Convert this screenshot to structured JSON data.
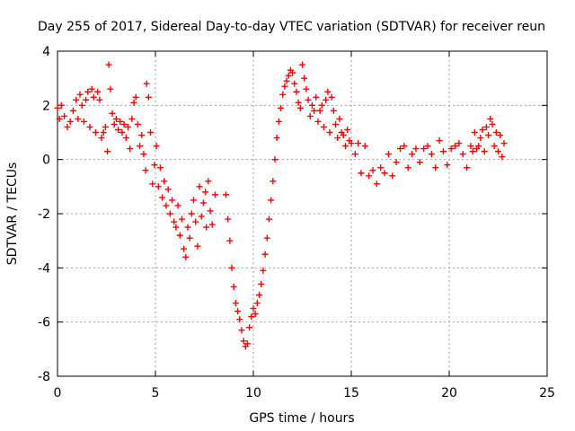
{
  "chart_data": {
    "type": "scatter",
    "title": "Day 255 of 2017, Sidereal Day-to-day VTEC variation (SDTVAR) for receiver reun",
    "xlabel": "GPS time / hours",
    "ylabel": "SDTVAR / TECUs",
    "xlim": [
      0,
      25
    ],
    "ylim": [
      -8,
      4
    ],
    "xticks": [
      0,
      5,
      10,
      15,
      20,
      25
    ],
    "yticks": [
      -8,
      -6,
      -4,
      -2,
      0,
      2,
      4
    ],
    "grid": true,
    "marker": "+",
    "series": [
      {
        "name": "SDTVAR",
        "color": "#ff0000",
        "points": [
          [
            0.0,
            1.9
          ],
          [
            0.1,
            1.5
          ],
          [
            0.2,
            2.0
          ],
          [
            0.35,
            1.6
          ],
          [
            0.5,
            1.2
          ],
          [
            0.65,
            1.4
          ],
          [
            0.8,
            1.8
          ],
          [
            0.95,
            2.2
          ],
          [
            1.05,
            1.5
          ],
          [
            1.15,
            2.4
          ],
          [
            1.25,
            2.0
          ],
          [
            1.35,
            1.4
          ],
          [
            1.45,
            2.2
          ],
          [
            1.55,
            2.5
          ],
          [
            1.65,
            1.2
          ],
          [
            1.75,
            2.6
          ],
          [
            1.85,
            2.3
          ],
          [
            1.95,
            1.0
          ],
          [
            2.05,
            2.5
          ],
          [
            2.15,
            2.2
          ],
          [
            2.25,
            0.8
          ],
          [
            2.35,
            1.0
          ],
          [
            2.45,
            1.2
          ],
          [
            2.55,
            0.3
          ],
          [
            2.62,
            3.5
          ],
          [
            2.7,
            2.6
          ],
          [
            2.8,
            1.7
          ],
          [
            2.9,
            1.3
          ],
          [
            3.0,
            1.5
          ],
          [
            3.1,
            1.1
          ],
          [
            3.2,
            1.4
          ],
          [
            3.3,
            1.0
          ],
          [
            3.4,
            1.3
          ],
          [
            3.5,
            0.8
          ],
          [
            3.6,
            1.2
          ],
          [
            3.7,
            0.4
          ],
          [
            3.8,
            1.5
          ],
          [
            3.9,
            2.1
          ],
          [
            4.0,
            2.3
          ],
          [
            4.1,
            1.3
          ],
          [
            4.2,
            0.5
          ],
          [
            4.3,
            0.9
          ],
          [
            4.4,
            0.2
          ],
          [
            4.5,
            -0.4
          ],
          [
            4.55,
            2.8
          ],
          [
            4.65,
            2.3
          ],
          [
            4.75,
            1.0
          ],
          [
            4.85,
            -0.9
          ],
          [
            4.95,
            -0.2
          ],
          [
            5.05,
            0.5
          ],
          [
            5.15,
            -1.0
          ],
          [
            5.25,
            -0.3
          ],
          [
            5.35,
            -1.4
          ],
          [
            5.45,
            -0.8
          ],
          [
            5.55,
            -1.7
          ],
          [
            5.65,
            -1.1
          ],
          [
            5.75,
            -2.0
          ],
          [
            5.85,
            -1.5
          ],
          [
            5.95,
            -2.3
          ],
          [
            6.05,
            -2.5
          ],
          [
            6.15,
            -1.7
          ],
          [
            6.25,
            -2.8
          ],
          [
            6.35,
            -2.2
          ],
          [
            6.45,
            -3.3
          ],
          [
            6.55,
            -3.6
          ],
          [
            6.65,
            -2.5
          ],
          [
            6.75,
            -2.9
          ],
          [
            6.85,
            -2.0
          ],
          [
            6.95,
            -1.5
          ],
          [
            7.05,
            -2.3
          ],
          [
            7.15,
            -3.2
          ],
          [
            7.25,
            -1.0
          ],
          [
            7.35,
            -2.1
          ],
          [
            7.45,
            -1.6
          ],
          [
            7.55,
            -1.2
          ],
          [
            7.6,
            -2.5
          ],
          [
            7.7,
            -0.8
          ],
          [
            7.8,
            -1.9
          ],
          [
            7.9,
            -2.4
          ],
          [
            8.05,
            -1.3
          ],
          [
            8.6,
            -1.3
          ],
          [
            8.7,
            -2.2
          ],
          [
            8.8,
            -3.0
          ],
          [
            8.9,
            -4.0
          ],
          [
            9.0,
            -4.7
          ],
          [
            9.1,
            -5.3
          ],
          [
            9.2,
            -5.6
          ],
          [
            9.3,
            -5.9
          ],
          [
            9.4,
            -6.3
          ],
          [
            9.5,
            -6.7
          ],
          [
            9.6,
            -6.9
          ],
          [
            9.7,
            -6.8
          ],
          [
            9.8,
            -6.2
          ],
          [
            9.9,
            -5.8
          ],
          [
            10.0,
            -5.5
          ],
          [
            10.1,
            -5.7
          ],
          [
            10.2,
            -5.3
          ],
          [
            10.3,
            -5.0
          ],
          [
            10.4,
            -4.6
          ],
          [
            10.5,
            -4.1
          ],
          [
            10.6,
            -3.5
          ],
          [
            10.7,
            -2.9
          ],
          [
            10.8,
            -2.2
          ],
          [
            10.9,
            -1.5
          ],
          [
            11.0,
            -0.8
          ],
          [
            11.1,
            0.0
          ],
          [
            11.2,
            0.8
          ],
          [
            11.3,
            1.4
          ],
          [
            11.4,
            1.9
          ],
          [
            11.5,
            2.4
          ],
          [
            11.6,
            2.7
          ],
          [
            11.7,
            2.9
          ],
          [
            11.8,
            3.1
          ],
          [
            11.9,
            3.3
          ],
          [
            12.0,
            3.2
          ],
          [
            12.1,
            2.8
          ],
          [
            12.2,
            2.5
          ],
          [
            12.3,
            2.1
          ],
          [
            12.4,
            1.9
          ],
          [
            12.5,
            3.5
          ],
          [
            12.6,
            3.0
          ],
          [
            12.7,
            2.6
          ],
          [
            12.8,
            2.2
          ],
          [
            12.9,
            1.6
          ],
          [
            13.0,
            2.0
          ],
          [
            13.1,
            1.8
          ],
          [
            13.2,
            2.3
          ],
          [
            13.3,
            1.4
          ],
          [
            13.4,
            1.8
          ],
          [
            13.5,
            2.0
          ],
          [
            13.6,
            1.2
          ],
          [
            13.7,
            2.2
          ],
          [
            13.8,
            2.5
          ],
          [
            13.9,
            1.0
          ],
          [
            14.0,
            2.3
          ],
          [
            14.1,
            1.8
          ],
          [
            14.2,
            1.3
          ],
          [
            14.3,
            0.8
          ],
          [
            14.4,
            1.5
          ],
          [
            14.5,
            1.0
          ],
          [
            14.6,
            0.9
          ],
          [
            14.7,
            0.5
          ],
          [
            14.8,
            1.1
          ],
          [
            14.9,
            0.7
          ],
          [
            15.0,
            0.6
          ],
          [
            15.2,
            0.2
          ],
          [
            15.35,
            0.6
          ],
          [
            15.5,
            -0.5
          ],
          [
            15.7,
            0.5
          ],
          [
            15.9,
            -0.6
          ],
          [
            16.1,
            -0.4
          ],
          [
            16.3,
            -0.9
          ],
          [
            16.5,
            -0.3
          ],
          [
            16.7,
            -0.5
          ],
          [
            16.9,
            0.2
          ],
          [
            17.1,
            -0.6
          ],
          [
            17.3,
            -0.1
          ],
          [
            17.5,
            0.4
          ],
          [
            17.7,
            0.5
          ],
          [
            17.9,
            -0.3
          ],
          [
            18.1,
            0.2
          ],
          [
            18.3,
            0.4
          ],
          [
            18.5,
            -0.1
          ],
          [
            18.7,
            0.4
          ],
          [
            18.9,
            0.5
          ],
          [
            19.1,
            0.2
          ],
          [
            19.3,
            -0.3
          ],
          [
            19.5,
            0.7
          ],
          [
            19.7,
            0.3
          ],
          [
            19.9,
            -0.2
          ],
          [
            20.1,
            0.4
          ],
          [
            20.3,
            0.5
          ],
          [
            20.5,
            0.6
          ],
          [
            20.7,
            0.2
          ],
          [
            20.9,
            -0.3
          ],
          [
            21.1,
            0.5
          ],
          [
            21.2,
            0.3
          ],
          [
            21.3,
            1.0
          ],
          [
            21.4,
            0.4
          ],
          [
            21.5,
            0.5
          ],
          [
            21.6,
            0.8
          ],
          [
            21.7,
            1.1
          ],
          [
            21.8,
            0.3
          ],
          [
            21.9,
            1.2
          ],
          [
            22.0,
            0.9
          ],
          [
            22.1,
            1.5
          ],
          [
            22.2,
            1.3
          ],
          [
            22.3,
            0.5
          ],
          [
            22.4,
            1.0
          ],
          [
            22.5,
            0.3
          ],
          [
            22.6,
            0.9
          ],
          [
            22.7,
            0.1
          ],
          [
            22.8,
            0.6
          ]
        ]
      }
    ]
  },
  "colors": {
    "series": "#ff0000",
    "grid": "#a0a0a0",
    "axis": "#000000",
    "background": "#ffffff"
  }
}
